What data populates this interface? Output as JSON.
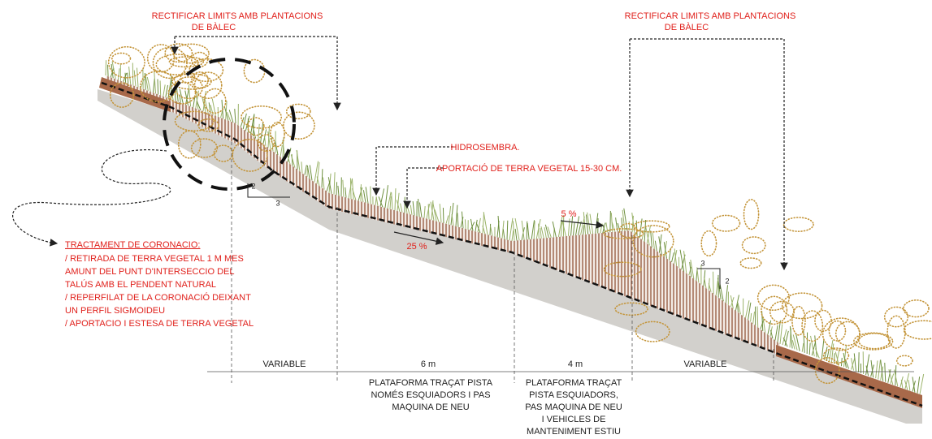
{
  "annotations": {
    "left_limit": [
      "RECTIFICAR LIMITS  AMB PLANTACIONS",
      "DE BÀLEC"
    ],
    "right_limit": [
      "RECTIFICAR LIMITS  AMB PLANTACIONS",
      "DE BÀLEC"
    ],
    "hydroseeding": "HIDROSEMBRA.",
    "topsoil": "APORTACIÓ DE TERRA VEGETAL 15-30 CM.",
    "slope_upper": "5 %",
    "slope_lower": "25 %"
  },
  "slope_ratios": {
    "left": {
      "rise": "2",
      "run": "3"
    },
    "right": {
      "run": "3",
      "rise": "2"
    }
  },
  "crown_treatment": {
    "title": "TRACTAMENT DE CORONACIO:",
    "lines": [
      "/ RETIRADA DE TERRA VEGETAL 1 M MES",
      "AMUNT DEL PUNT D'INTERSECCIO DEL",
      "TALÚS AMB EL PENDENT NATURAL",
      "/ REPERFILAT DE LA CORONACIÓ DEIXANT",
      "UN PERFIL SIGMOIDEU",
      "/ APORTACIO I ESTESA DE TERRA VEGETAL"
    ]
  },
  "sections": [
    {
      "width": "VARIABLE"
    },
    {
      "width": "6 m",
      "description": [
        "PLATAFORMA TRAÇAT PISTA",
        "NOMÉS ESQUIADORS I PAS",
        "MAQUINA DE NEU"
      ]
    },
    {
      "width": "4 m",
      "description": [
        "PLATAFORMA TRAÇAT",
        "PISTA ESQUIADORS,",
        "PAS MAQUINA DE NEU",
        "I VEHICLES DE",
        "MANTENIMENT ESTIU"
      ]
    },
    {
      "width": "VARIABLE"
    }
  ]
}
